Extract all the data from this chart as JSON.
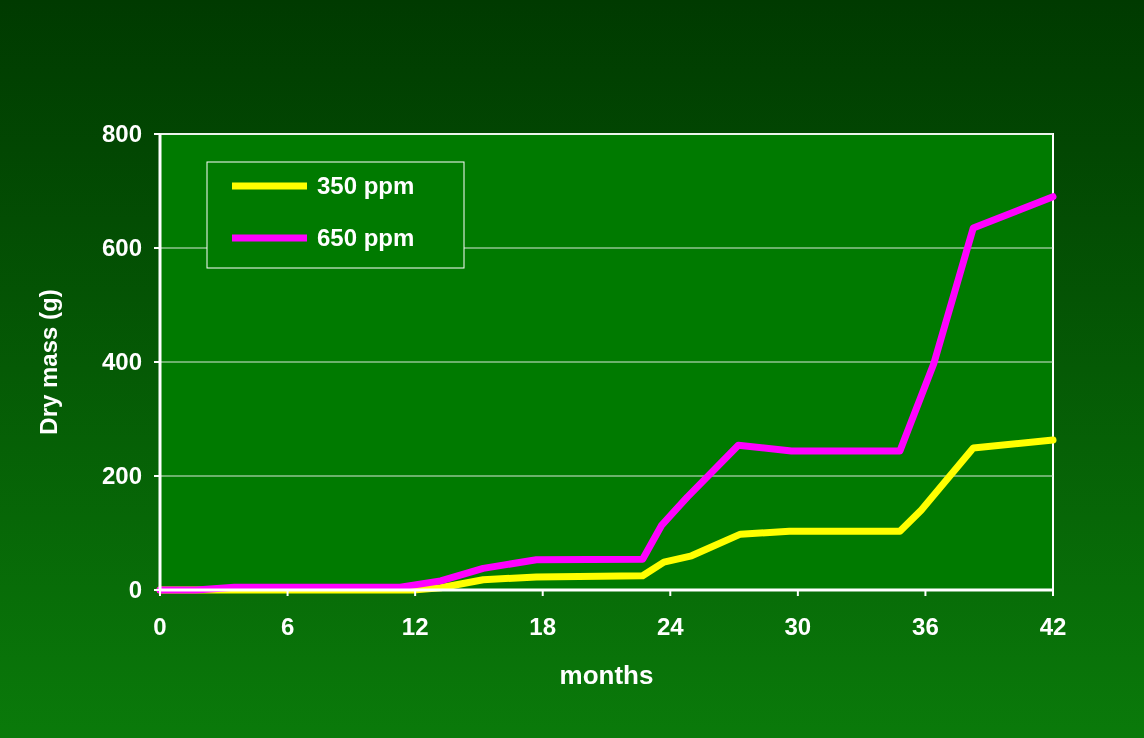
{
  "chart_data": {
    "type": "line",
    "xlabel": "months",
    "ylabel": "Dry mass (g)",
    "xlim": [
      0,
      42
    ],
    "xticks": [
      0,
      6,
      12,
      18,
      24,
      30,
      36,
      42
    ],
    "ylim": [
      0,
      800
    ],
    "yticks": [
      0,
      200,
      400,
      600,
      800
    ],
    "grid": "y",
    "legend": "top left",
    "marker": "none",
    "line_style": "solid",
    "series": [
      {
        "name": "350 ppm",
        "color": "#ffff00",
        "x": [
          0,
          11.9,
          13.2,
          15.2,
          17.7,
          22.7,
          23.7,
          25,
          27.3,
          29.6,
          34.8,
          35.8,
          38.25,
          42
        ],
        "values": [
          0,
          0,
          4,
          18,
          23,
          25,
          49,
          60,
          98,
          103,
          103,
          140,
          249,
          263
        ]
      },
      {
        "name": "650 ppm",
        "color": "#ff00ff",
        "x": [
          0,
          1.7,
          3.5,
          11.3,
          13.2,
          15.2,
          17.7,
          22.7,
          23.6,
          24.8,
          27.2,
          29.7,
          34.8,
          36.4,
          38.25,
          42
        ],
        "values": [
          0,
          0,
          5,
          5,
          16,
          38,
          53,
          54,
          114,
          163,
          254,
          244,
          244,
          398,
          635,
          690
        ]
      }
    ]
  }
}
